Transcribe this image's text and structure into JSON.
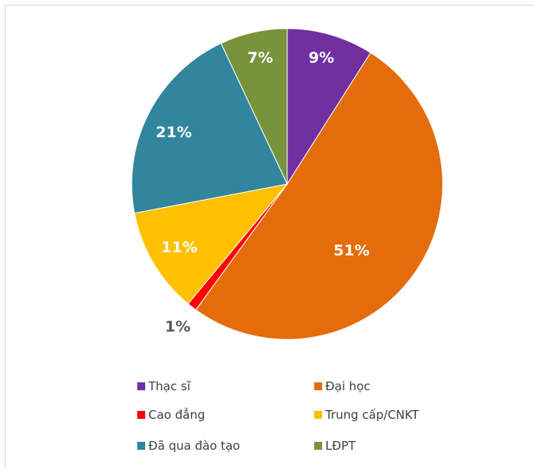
{
  "chart_data": {
    "type": "pie",
    "categories": [
      "Thạc sĩ",
      "Đại học",
      "Cao đẳng",
      "Trung cấp/CNKT",
      "Đã qua đào tạo",
      "LĐPT"
    ],
    "values": [
      9,
      51,
      1,
      11,
      21,
      7
    ],
    "data_labels": [
      "9%",
      "51%",
      "1%",
      "11%",
      "21%",
      "7%"
    ],
    "colors": [
      "#7030a0",
      "#e46c0a",
      "#ff0000",
      "#ffc000",
      "#31859c",
      "#77933c"
    ],
    "label_colors": [
      "#ffffff",
      "#ffffff",
      "#595959",
      "#ffffff",
      "#ffffff",
      "#ffffff"
    ],
    "start_angle_deg": 0,
    "direction": "clockwise",
    "legend_position": "bottom"
  }
}
